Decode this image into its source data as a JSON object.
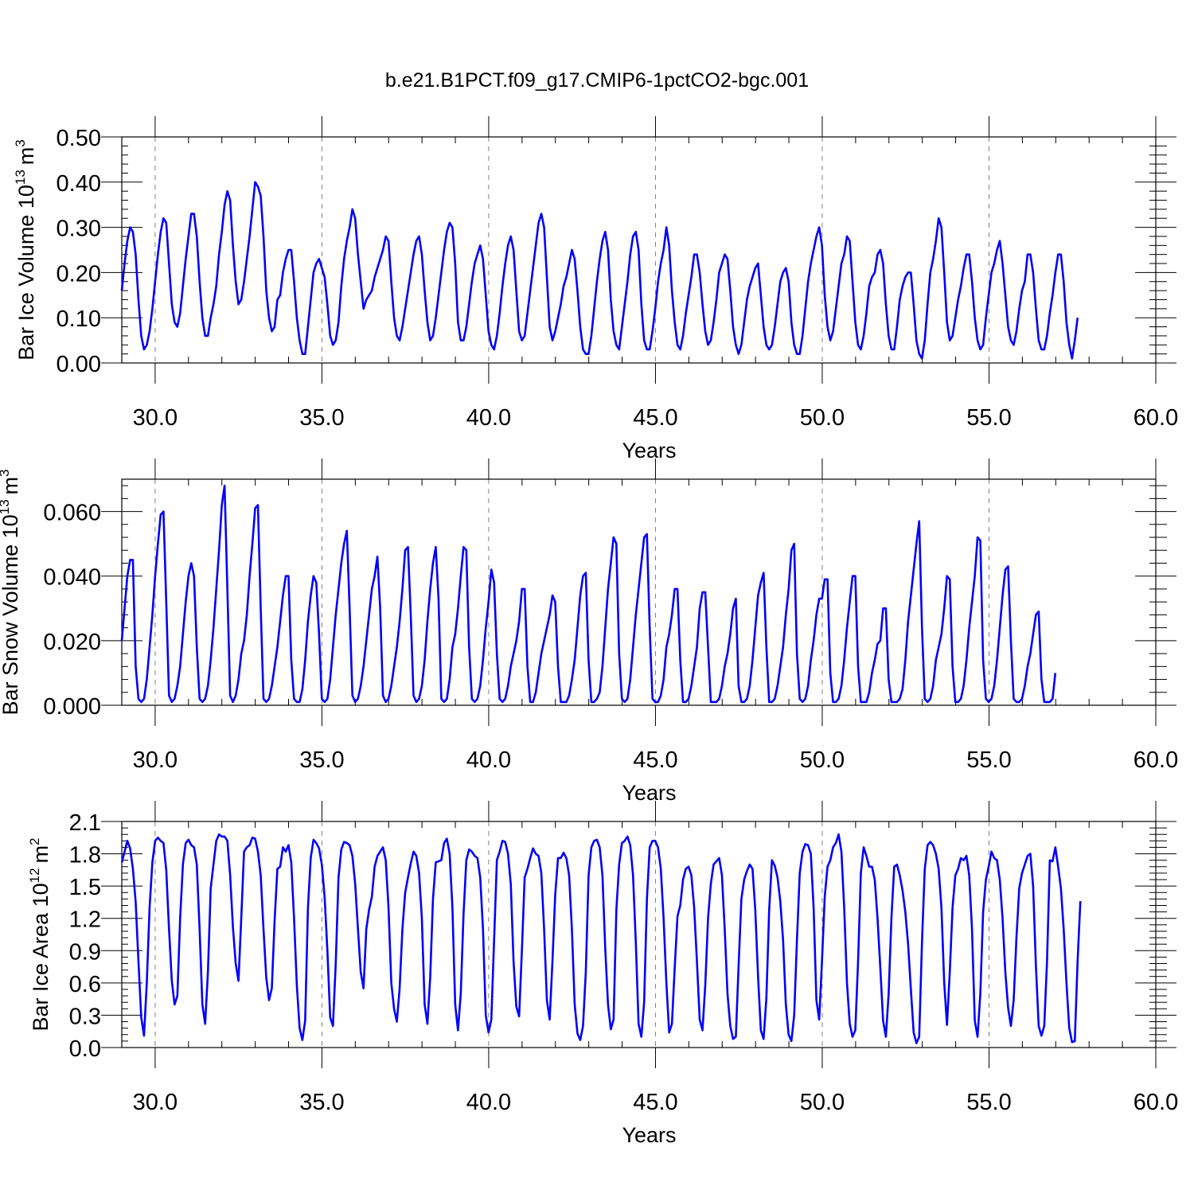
{
  "title": "b.e21.B1PCT.f09_g17.CMIP6-1pctCO2-bgc.001",
  "colors": {
    "line": "#0000ff",
    "axis": "#000000",
    "grid": "#808080"
  },
  "chart_data": [
    {
      "type": "line",
      "series": [
        {
          "name": "Bar Ice Volume",
          "color": "#0000ff"
        }
      ],
      "ylabel_main": "Bar Ice Volume 10",
      "ylabel_sup": "13",
      "ylabel_unit": "m",
      "ylabel_unit_sup": "3",
      "xlabel": "Years",
      "xlim": [
        29.0,
        60.0
      ],
      "ylim": [
        0.0,
        0.5
      ],
      "xticks": [
        "30.0",
        "35.0",
        "40.0",
        "45.0",
        "50.0",
        "55.0",
        "60.0"
      ],
      "xtick_values": [
        30,
        35,
        40,
        45,
        50,
        55,
        60
      ],
      "yticks": [
        "0.00",
        "0.10",
        "0.20",
        "0.30",
        "0.40",
        "0.50"
      ],
      "ytick_values": [
        0.0,
        0.1,
        0.2,
        0.3,
        0.4,
        0.5
      ],
      "grid": "dashed vertical at major x ticks",
      "x_start": 29.0,
      "x_step": 0.0833,
      "values": [
        0.16,
        0.22,
        0.27,
        0.3,
        0.29,
        0.24,
        0.14,
        0.06,
        0.03,
        0.04,
        0.07,
        0.12,
        0.18,
        0.24,
        0.29,
        0.32,
        0.31,
        0.22,
        0.13,
        0.09,
        0.08,
        0.11,
        0.17,
        0.23,
        0.28,
        0.33,
        0.33,
        0.28,
        0.18,
        0.1,
        0.06,
        0.06,
        0.1,
        0.13,
        0.17,
        0.24,
        0.29,
        0.35,
        0.38,
        0.36,
        0.26,
        0.18,
        0.13,
        0.14,
        0.18,
        0.23,
        0.28,
        0.34,
        0.4,
        0.39,
        0.37,
        0.28,
        0.16,
        0.1,
        0.07,
        0.08,
        0.14,
        0.15,
        0.2,
        0.23,
        0.25,
        0.25,
        0.18,
        0.1,
        0.05,
        0.02,
        0.02,
        0.08,
        0.14,
        0.2,
        0.22,
        0.23,
        0.21,
        0.19,
        0.13,
        0.06,
        0.04,
        0.05,
        0.09,
        0.17,
        0.23,
        0.27,
        0.3,
        0.34,
        0.32,
        0.24,
        0.18,
        0.12,
        0.14,
        0.15,
        0.16,
        0.19,
        0.21,
        0.23,
        0.25,
        0.28,
        0.27,
        0.18,
        0.1,
        0.06,
        0.05,
        0.08,
        0.12,
        0.16,
        0.2,
        0.24,
        0.27,
        0.28,
        0.24,
        0.16,
        0.09,
        0.05,
        0.06,
        0.1,
        0.15,
        0.2,
        0.25,
        0.29,
        0.31,
        0.3,
        0.22,
        0.09,
        0.05,
        0.05,
        0.08,
        0.13,
        0.18,
        0.22,
        0.24,
        0.26,
        0.23,
        0.15,
        0.07,
        0.04,
        0.03,
        0.06,
        0.11,
        0.17,
        0.22,
        0.26,
        0.28,
        0.25,
        0.16,
        0.07,
        0.05,
        0.06,
        0.11,
        0.16,
        0.21,
        0.26,
        0.31,
        0.33,
        0.3,
        0.19,
        0.08,
        0.05,
        0.07,
        0.1,
        0.13,
        0.17,
        0.19,
        0.22,
        0.25,
        0.23,
        0.16,
        0.08,
        0.03,
        0.02,
        0.02,
        0.06,
        0.12,
        0.18,
        0.23,
        0.27,
        0.29,
        0.25,
        0.14,
        0.07,
        0.04,
        0.03,
        0.08,
        0.13,
        0.18,
        0.24,
        0.28,
        0.29,
        0.25,
        0.13,
        0.05,
        0.03,
        0.03,
        0.07,
        0.12,
        0.18,
        0.22,
        0.25,
        0.3,
        0.26,
        0.16,
        0.09,
        0.04,
        0.03,
        0.06,
        0.11,
        0.15,
        0.19,
        0.24,
        0.24,
        0.2,
        0.13,
        0.07,
        0.04,
        0.05,
        0.09,
        0.14,
        0.2,
        0.22,
        0.24,
        0.23,
        0.16,
        0.08,
        0.04,
        0.02,
        0.04,
        0.09,
        0.14,
        0.17,
        0.19,
        0.21,
        0.22,
        0.15,
        0.08,
        0.04,
        0.03,
        0.04,
        0.08,
        0.13,
        0.18,
        0.2,
        0.21,
        0.18,
        0.09,
        0.04,
        0.02,
        0.02,
        0.06,
        0.12,
        0.18,
        0.22,
        0.25,
        0.28,
        0.3,
        0.26,
        0.15,
        0.08,
        0.05,
        0.07,
        0.12,
        0.17,
        0.22,
        0.24,
        0.28,
        0.27,
        0.18,
        0.09,
        0.04,
        0.03,
        0.06,
        0.11,
        0.17,
        0.19,
        0.2,
        0.24,
        0.25,
        0.22,
        0.13,
        0.06,
        0.03,
        0.03,
        0.08,
        0.14,
        0.17,
        0.19,
        0.2,
        0.2,
        0.13,
        0.05,
        0.02,
        0.01,
        0.05,
        0.13,
        0.2,
        0.23,
        0.27,
        0.32,
        0.3,
        0.2,
        0.09,
        0.05,
        0.06,
        0.1,
        0.14,
        0.17,
        0.21,
        0.24,
        0.24,
        0.18,
        0.1,
        0.05,
        0.03,
        0.04,
        0.1,
        0.15,
        0.2,
        0.22,
        0.25,
        0.27,
        0.22,
        0.15,
        0.08,
        0.05,
        0.04,
        0.07,
        0.12,
        0.16,
        0.18,
        0.24,
        0.24,
        0.2,
        0.12,
        0.05,
        0.03,
        0.03,
        0.06,
        0.11,
        0.15,
        0.2,
        0.24,
        0.24,
        0.18,
        0.09,
        0.04,
        0.01,
        0.05,
        0.1
      ]
    },
    {
      "type": "line",
      "series": [
        {
          "name": "Bar Snow Volume",
          "color": "#0000ff"
        }
      ],
      "ylabel_main": "Bar Snow Volume 10",
      "ylabel_sup": "13",
      "ylabel_unit": "m",
      "ylabel_unit_sup": "3",
      "xlabel": "Years",
      "xlim": [
        29.0,
        60.0
      ],
      "ylim": [
        0.0,
        0.07
      ],
      "xticks": [
        "30.0",
        "35.0",
        "40.0",
        "45.0",
        "50.0",
        "55.0",
        "60.0"
      ],
      "xtick_values": [
        30,
        35,
        40,
        45,
        50,
        55,
        60
      ],
      "yticks": [
        "0.000",
        "0.020",
        "0.040",
        "0.060"
      ],
      "ytick_values": [
        0.0,
        0.02,
        0.04,
        0.06
      ],
      "grid": "dashed vertical at major x ticks",
      "x_start": 29.0,
      "x_step": 0.0833,
      "values": [
        0.02,
        0.03,
        0.04,
        0.045,
        0.045,
        0.012,
        0.002,
        0.001,
        0.002,
        0.008,
        0.018,
        0.028,
        0.04,
        0.05,
        0.059,
        0.06,
        0.032,
        0.003,
        0.001,
        0.002,
        0.006,
        0.012,
        0.022,
        0.032,
        0.04,
        0.044,
        0.04,
        0.018,
        0.002,
        0.001,
        0.002,
        0.006,
        0.014,
        0.024,
        0.036,
        0.048,
        0.062,
        0.068,
        0.036,
        0.003,
        0.001,
        0.003,
        0.008,
        0.016,
        0.02,
        0.028,
        0.04,
        0.05,
        0.061,
        0.062,
        0.03,
        0.002,
        0.001,
        0.002,
        0.006,
        0.012,
        0.018,
        0.026,
        0.034,
        0.04,
        0.04,
        0.014,
        0.002,
        0.001,
        0.001,
        0.005,
        0.014,
        0.026,
        0.034,
        0.04,
        0.038,
        0.022,
        0.002,
        0.001,
        0.002,
        0.008,
        0.018,
        0.028,
        0.036,
        0.044,
        0.05,
        0.054,
        0.03,
        0.003,
        0.001,
        0.002,
        0.006,
        0.012,
        0.02,
        0.028,
        0.036,
        0.04,
        0.046,
        0.03,
        0.003,
        0.001,
        0.002,
        0.006,
        0.012,
        0.018,
        0.026,
        0.036,
        0.048,
        0.049,
        0.028,
        0.003,
        0.001,
        0.002,
        0.006,
        0.014,
        0.026,
        0.036,
        0.044,
        0.049,
        0.033,
        0.002,
        0.001,
        0.002,
        0.008,
        0.018,
        0.022,
        0.03,
        0.04,
        0.049,
        0.048,
        0.018,
        0.002,
        0.001,
        0.002,
        0.006,
        0.014,
        0.024,
        0.032,
        0.042,
        0.038,
        0.016,
        0.002,
        0.001,
        0.002,
        0.006,
        0.012,
        0.016,
        0.02,
        0.026,
        0.036,
        0.036,
        0.012,
        0.001,
        0.001,
        0.004,
        0.01,
        0.016,
        0.02,
        0.024,
        0.028,
        0.034,
        0.032,
        0.012,
        0.001,
        0.001,
        0.001,
        0.003,
        0.008,
        0.014,
        0.024,
        0.034,
        0.04,
        0.041,
        0.014,
        0.001,
        0.001,
        0.002,
        0.004,
        0.012,
        0.024,
        0.036,
        0.044,
        0.052,
        0.05,
        0.016,
        0.002,
        0.001,
        0.002,
        0.008,
        0.018,
        0.028,
        0.036,
        0.044,
        0.052,
        0.053,
        0.024,
        0.002,
        0.001,
        0.001,
        0.003,
        0.008,
        0.018,
        0.022,
        0.028,
        0.036,
        0.036,
        0.014,
        0.001,
        0.001,
        0.002,
        0.006,
        0.012,
        0.018,
        0.03,
        0.035,
        0.035,
        0.018,
        0.001,
        0.001,
        0.001,
        0.002,
        0.006,
        0.012,
        0.016,
        0.022,
        0.03,
        0.033,
        0.006,
        0.001,
        0.001,
        0.002,
        0.006,
        0.014,
        0.024,
        0.034,
        0.038,
        0.041,
        0.018,
        0.001,
        0.001,
        0.002,
        0.006,
        0.012,
        0.018,
        0.028,
        0.036,
        0.048,
        0.05,
        0.016,
        0.002,
        0.001,
        0.002,
        0.006,
        0.014,
        0.02,
        0.028,
        0.033,
        0.033,
        0.039,
        0.039,
        0.01,
        0.001,
        0.001,
        0.002,
        0.006,
        0.014,
        0.024,
        0.032,
        0.04,
        0.04,
        0.012,
        0.001,
        0.001,
        0.001,
        0.004,
        0.01,
        0.014,
        0.019,
        0.02,
        0.03,
        0.03,
        0.008,
        0.001,
        0.001,
        0.001,
        0.002,
        0.005,
        0.014,
        0.026,
        0.034,
        0.042,
        0.05,
        0.057,
        0.024,
        0.002,
        0.001,
        0.002,
        0.006,
        0.014,
        0.018,
        0.022,
        0.03,
        0.04,
        0.039,
        0.012,
        0.001,
        0.001,
        0.002,
        0.006,
        0.014,
        0.024,
        0.032,
        0.04,
        0.052,
        0.051,
        0.014,
        0.002,
        0.001,
        0.002,
        0.006,
        0.014,
        0.024,
        0.034,
        0.042,
        0.043,
        0.02,
        0.002,
        0.001,
        0.001,
        0.002,
        0.006,
        0.012,
        0.016,
        0.022,
        0.028,
        0.029,
        0.008,
        0.001,
        0.001,
        0.001,
        0.002,
        0.01
      ]
    },
    {
      "type": "line",
      "series": [
        {
          "name": "Bar Ice Area",
          "color": "#0000ff"
        }
      ],
      "ylabel_main": "Bar Ice Area 10",
      "ylabel_sup": "12",
      "ylabel_unit": "m",
      "ylabel_unit_sup": "2",
      "xlabel": "Years",
      "xlim": [
        29.0,
        60.0
      ],
      "ylim": [
        0.0,
        2.1
      ],
      "xticks": [
        "30.0",
        "35.0",
        "40.0",
        "45.0",
        "50.0",
        "55.0",
        "60.0"
      ],
      "xtick_values": [
        30,
        35,
        40,
        45,
        50,
        55,
        60
      ],
      "yticks": [
        "0.0",
        "0.3",
        "0.6",
        "0.9",
        "1.2",
        "1.5",
        "1.8",
        "2.1"
      ],
      "ytick_values": [
        0.0,
        0.3,
        0.6,
        0.9,
        1.2,
        1.5,
        1.8,
        2.1
      ],
      "grid": "dashed vertical at major x ticks",
      "x_start": 29.0,
      "x_step": 0.0833,
      "values": [
        1.72,
        1.82,
        1.92,
        1.85,
        1.66,
        1.35,
        0.8,
        0.28,
        0.11,
        0.6,
        1.3,
        1.72,
        1.92,
        1.95,
        1.92,
        1.9,
        1.65,
        1.1,
        0.62,
        0.4,
        0.48,
        1.2,
        1.7,
        1.9,
        1.93,
        1.88,
        1.86,
        1.7,
        1.1,
        0.4,
        0.22,
        0.7,
        1.48,
        1.7,
        1.92,
        1.98,
        1.96,
        1.96,
        1.92,
        1.6,
        1.12,
        0.78,
        0.62,
        1.2,
        1.82,
        1.86,
        1.88,
        1.95,
        1.94,
        1.82,
        1.6,
        1.1,
        0.65,
        0.44,
        0.55,
        1.18,
        1.66,
        1.68,
        1.86,
        1.82,
        1.88,
        1.72,
        1.2,
        0.58,
        0.18,
        0.07,
        0.25,
        1.3,
        1.76,
        1.93,
        1.9,
        1.85,
        1.7,
        1.4,
        0.9,
        0.28,
        0.2,
        0.78,
        1.58,
        1.84,
        1.91,
        1.9,
        1.88,
        1.78,
        1.52,
        1.1,
        0.7,
        0.55,
        1.1,
        1.28,
        1.4,
        1.68,
        1.78,
        1.82,
        1.86,
        1.74,
        1.3,
        0.6,
        0.36,
        0.24,
        0.55,
        1.1,
        1.44,
        1.58,
        1.71,
        1.82,
        1.78,
        1.62,
        1.2,
        0.4,
        0.22,
        0.65,
        1.38,
        1.72,
        1.73,
        1.74,
        1.9,
        1.94,
        1.8,
        1.3,
        0.4,
        0.16,
        0.5,
        1.24,
        1.74,
        1.84,
        1.82,
        1.78,
        1.76,
        1.58,
        1.1,
        0.3,
        0.14,
        0.26,
        1.0,
        1.74,
        1.82,
        1.92,
        1.91,
        1.8,
        1.52,
        0.8,
        0.38,
        0.29,
        0.9,
        1.58,
        1.66,
        1.76,
        1.85,
        1.8,
        1.78,
        1.62,
        1.1,
        0.44,
        0.26,
        0.8,
        1.42,
        1.76,
        1.76,
        1.81,
        1.76,
        1.6,
        1.1,
        0.4,
        0.13,
        0.07,
        0.2,
        0.7,
        1.6,
        1.86,
        1.92,
        1.93,
        1.86,
        1.6,
        0.92,
        0.4,
        0.17,
        0.26,
        1.28,
        1.7,
        1.9,
        1.92,
        1.96,
        1.88,
        1.6,
        0.98,
        0.22,
        0.1,
        0.42,
        1.38,
        1.86,
        1.92,
        1.92,
        1.86,
        1.66,
        1.2,
        0.6,
        0.14,
        0.22,
        0.74,
        1.22,
        1.32,
        1.56,
        1.66,
        1.68,
        1.6,
        1.3,
        0.8,
        0.26,
        0.16,
        0.58,
        1.2,
        1.52,
        1.7,
        1.73,
        1.76,
        1.6,
        1.1,
        0.5,
        0.2,
        0.08,
        0.1,
        0.76,
        1.38,
        1.56,
        1.64,
        1.7,
        1.66,
        1.28,
        0.66,
        0.16,
        0.08,
        0.46,
        1.28,
        1.74,
        1.69,
        1.58,
        1.36,
        1.0,
        0.4,
        0.12,
        0.06,
        0.3,
        1.0,
        1.62,
        1.82,
        1.89,
        1.88,
        1.8,
        1.3,
        0.44,
        0.26,
        0.8,
        1.4,
        1.68,
        1.74,
        1.86,
        1.9,
        1.98,
        1.82,
        1.3,
        0.6,
        0.22,
        0.1,
        0.16,
        0.8,
        1.62,
        1.86,
        1.78,
        1.68,
        1.68,
        1.56,
        1.2,
        0.74,
        0.25,
        0.1,
        0.5,
        1.2,
        1.68,
        1.7,
        1.6,
        1.46,
        1.26,
        0.96,
        0.54,
        0.14,
        0.04,
        0.1,
        0.98,
        1.66,
        1.88,
        1.91,
        1.88,
        1.8,
        1.66,
        1.3,
        0.6,
        0.21,
        0.7,
        1.3,
        1.6,
        1.66,
        1.76,
        1.74,
        1.78,
        1.6,
        1.1,
        0.25,
        0.1,
        0.5,
        1.26,
        1.56,
        1.68,
        1.82,
        1.76,
        1.74,
        1.56,
        1.2,
        0.7,
        0.37,
        0.2,
        0.44,
        1.02,
        1.48,
        1.62,
        1.7,
        1.78,
        1.8,
        1.5,
        0.76,
        0.2,
        0.11,
        0.2,
        0.8,
        1.74,
        1.73,
        1.86,
        1.68,
        1.48,
        1.1,
        0.6,
        0.18,
        0.05,
        0.06,
        0.8,
        1.36
      ]
    }
  ]
}
